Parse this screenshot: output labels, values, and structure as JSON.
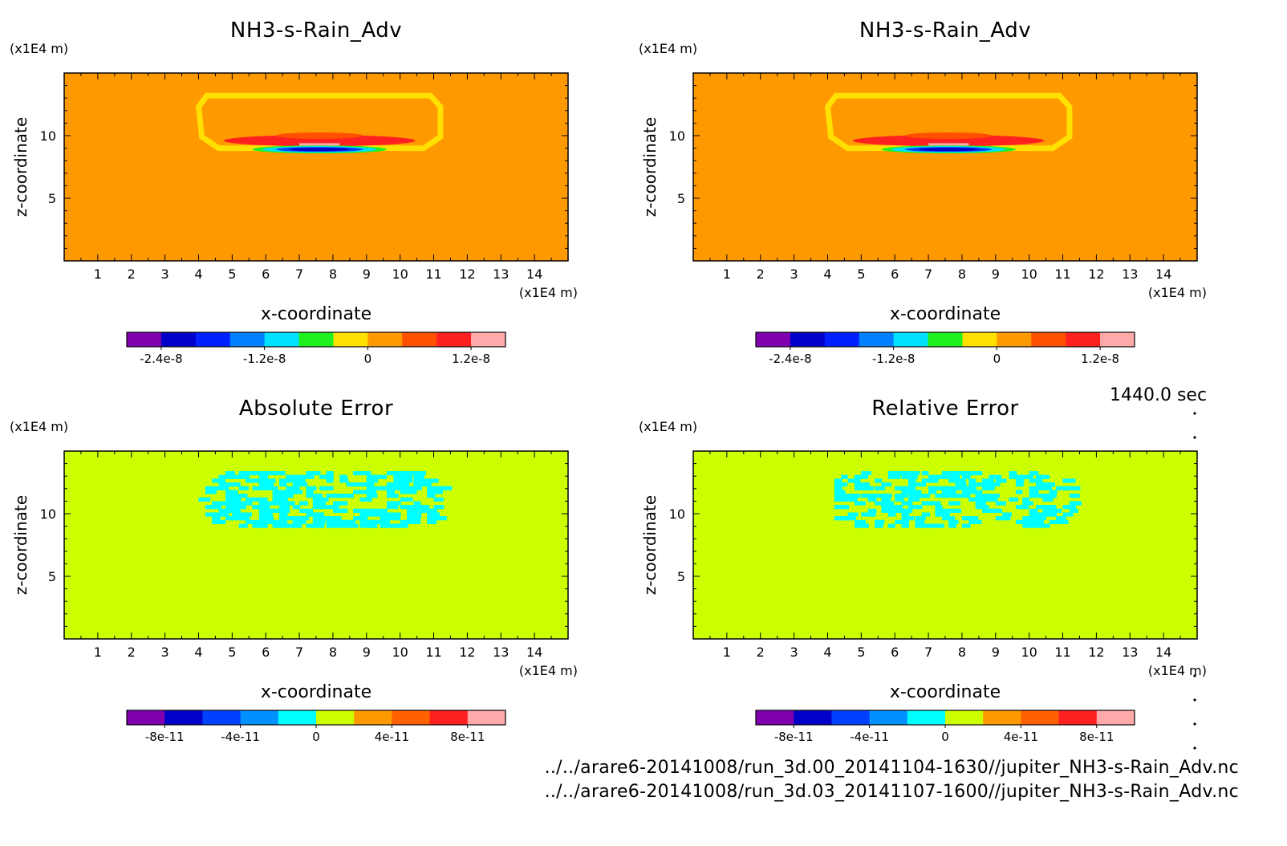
{
  "time_label": "1440.0 sec",
  "footer": {
    "line1": "../../arare6-20141008/run_3d.00_20141104-1630//jupiter_NH3-s-Rain_Adv.nc",
    "line2": "../../arare6-20141008/run_3d.03_20141107-1600//jupiter_NH3-s-Rain_Adv.nc"
  },
  "chart_data": [
    {
      "type": "heatmap",
      "title": "NH3-s-Rain_Adv",
      "xlabel": "x-coordinate",
      "ylabel": "z-coordinate",
      "x_unit": "(x1E4 m)",
      "y_unit": "(x1E4 m)",
      "xlim": [
        0,
        15
      ],
      "ylim": [
        0,
        15
      ],
      "x_ticks": [
        "1",
        "2",
        "3",
        "4",
        "5",
        "6",
        "7",
        "8",
        "9",
        "10",
        "11",
        "12",
        "13",
        "14"
      ],
      "y_ticks": [
        "5",
        "10"
      ],
      "background_color": "#ff9900",
      "feature": "rain advection band near z=10, x=4-11",
      "colorbar": {
        "colors": [
          "#8000b0",
          "#0000c8",
          "#0020ff",
          "#0080ff",
          "#00e0ff",
          "#20f020",
          "#ffe000",
          "#ff9900",
          "#ff5000",
          "#ff2020",
          "#ffaaaa"
        ],
        "tick_labels": [
          "-2.4e-8",
          "-1.2e-8",
          "0",
          "1.2e-8"
        ],
        "tick_values": [
          -2.4e-08,
          -1.2e-08,
          0,
          1.2e-08
        ]
      }
    },
    {
      "type": "heatmap",
      "title": "NH3-s-Rain_Adv",
      "xlabel": "x-coordinate",
      "ylabel": "z-coordinate",
      "x_unit": "(x1E4 m)",
      "y_unit": "(x1E4 m)",
      "xlim": [
        0,
        15
      ],
      "ylim": [
        0,
        15
      ],
      "x_ticks": [
        "1",
        "2",
        "3",
        "4",
        "5",
        "6",
        "7",
        "8",
        "9",
        "10",
        "11",
        "12",
        "13",
        "14"
      ],
      "y_ticks": [
        "5",
        "10"
      ],
      "background_color": "#ff9900",
      "feature": "rain advection band near z=10, x=4-11",
      "colorbar": {
        "colors": [
          "#8000b0",
          "#0000c8",
          "#0020ff",
          "#0080ff",
          "#00e0ff",
          "#20f020",
          "#ffe000",
          "#ff9900",
          "#ff5000",
          "#ff2020",
          "#ffaaaa"
        ],
        "tick_labels": [
          "-2.4e-8",
          "-1.2e-8",
          "0",
          "1.2e-8"
        ],
        "tick_values": [
          -2.4e-08,
          -1.2e-08,
          0,
          1.2e-08
        ]
      }
    },
    {
      "type": "heatmap",
      "title": "Absolute Error",
      "xlabel": "x-coordinate",
      "ylabel": "z-coordinate",
      "x_unit": "(x1E4 m)",
      "y_unit": "(x1E4 m)",
      "xlim": [
        0,
        15
      ],
      "ylim": [
        0,
        15
      ],
      "x_ticks": [
        "1",
        "2",
        "3",
        "4",
        "5",
        "6",
        "7",
        "8",
        "9",
        "10",
        "11",
        "12",
        "13",
        "14"
      ],
      "y_ticks": [
        "5",
        "10"
      ],
      "background_color": "#ccff00",
      "feature": "speckled error pattern x=4-11, z=9-13",
      "colorbar": {
        "colors": [
          "#8000b0",
          "#0000c8",
          "#0040ff",
          "#0090ff",
          "#00ffff",
          "#ccff00",
          "#ff9900",
          "#ff6000",
          "#ff2020",
          "#ffaaaa"
        ],
        "tick_labels": [
          "-8e-11",
          "-4e-11",
          "0",
          "4e-11",
          "8e-11"
        ],
        "tick_values": [
          -8e-11,
          -4e-11,
          0,
          4e-11,
          8e-11
        ]
      }
    },
    {
      "type": "heatmap",
      "title": "Relative Error",
      "xlabel": "x-coordinate",
      "ylabel": "z-coordinate",
      "x_unit": "(x1E4 m)",
      "y_unit": "(x1E4 m)",
      "xlim": [
        0,
        15
      ],
      "ylim": [
        0,
        15
      ],
      "x_ticks": [
        "1",
        "2",
        "3",
        "4",
        "5",
        "6",
        "7",
        "8",
        "9",
        "10",
        "11",
        "12",
        "13",
        "14"
      ],
      "y_ticks": [
        "5",
        "10"
      ],
      "background_color": "#ccff00",
      "feature": "speckled error pattern x=4-11, z=9-13",
      "colorbar": {
        "colors": [
          "#8000b0",
          "#0000c8",
          "#0040ff",
          "#0090ff",
          "#00ffff",
          "#ccff00",
          "#ff9900",
          "#ff6000",
          "#ff2020",
          "#ffaaaa"
        ],
        "tick_labels": [
          "-8e-11",
          "-4e-11",
          "0",
          "4e-11",
          "8e-11"
        ],
        "tick_values": [
          -8e-11,
          -4e-11,
          0,
          4e-11,
          8e-11
        ]
      }
    }
  ]
}
